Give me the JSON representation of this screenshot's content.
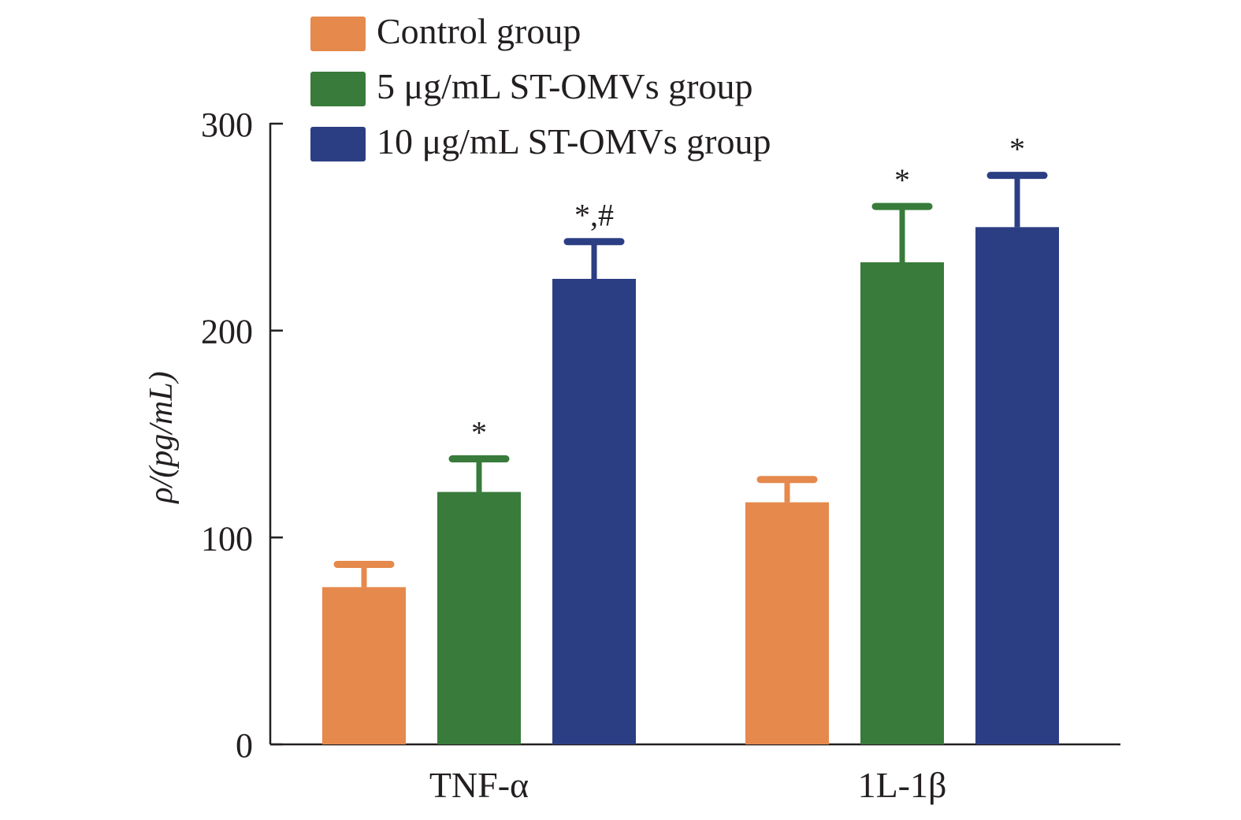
{
  "chart_data": {
    "type": "bar",
    "title": "",
    "xlabel": "",
    "ylabel": "ρ/(pg/mL)",
    "ylim": [
      0,
      300
    ],
    "yticks": [
      0,
      100,
      200,
      300
    ],
    "grid": false,
    "legend_position": "top",
    "categories": [
      "TNF-α",
      "1L-1β"
    ],
    "series": [
      {
        "name": "Control group",
        "color": "#e5894c",
        "values": [
          76,
          117
        ],
        "errors": [
          11,
          11
        ],
        "significance": [
          "",
          ""
        ]
      },
      {
        "name": "5 μg/mL ST-OMVs group",
        "color": "#387b3b",
        "values": [
          122,
          233
        ],
        "errors": [
          16,
          27
        ],
        "significance": [
          "*",
          "*"
        ]
      },
      {
        "name": "10 μg/mL ST-OMVs group",
        "color": "#2c3e83",
        "values": [
          225,
          250
        ],
        "errors": [
          18,
          25
        ],
        "significance": [
          "*,#",
          "*"
        ]
      }
    ]
  }
}
